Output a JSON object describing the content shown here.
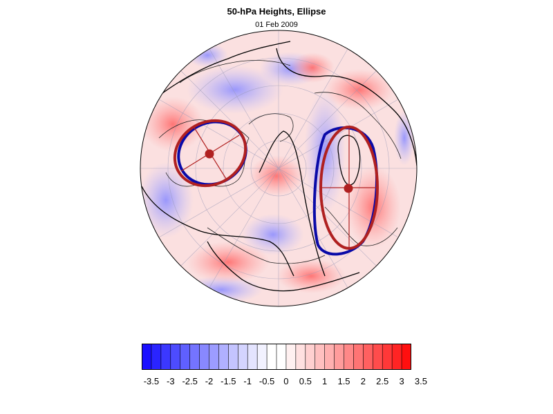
{
  "title": "50-hPa Heights, Ellipse",
  "date": "01 Feb 2009",
  "colorbar": {
    "labels": [
      "-3.5",
      "-3",
      "-2.5",
      "-2",
      "-1.5",
      "-1",
      "-0.5",
      "0",
      "0.5",
      "1",
      "1.5",
      "2",
      "2.5",
      "3",
      "3.5"
    ],
    "colors": [
      "#1a0fff",
      "#2a24ff",
      "#3b38ff",
      "#4d4cff",
      "#5f60ff",
      "#7474ff",
      "#8888ff",
      "#9c9cff",
      "#b0b0ff",
      "#c4c4ff",
      "#d4d4ff",
      "#e4e4ff",
      "#f2f2ff",
      "#ffffff",
      "#ffffff",
      "#fff0f0",
      "#ffe0e0",
      "#ffd0d0",
      "#ffc0c0",
      "#ffb0b0",
      "#ff9c9c",
      "#ff8888",
      "#ff7474",
      "#ff6060",
      "#ff4c4c",
      "#ff3838",
      "#ff2424",
      "#ff0f0f"
    ]
  },
  "legend_colors": {
    "blue_ellipse": "#0a0aa8",
    "red_ellipse": "#b02020"
  }
}
